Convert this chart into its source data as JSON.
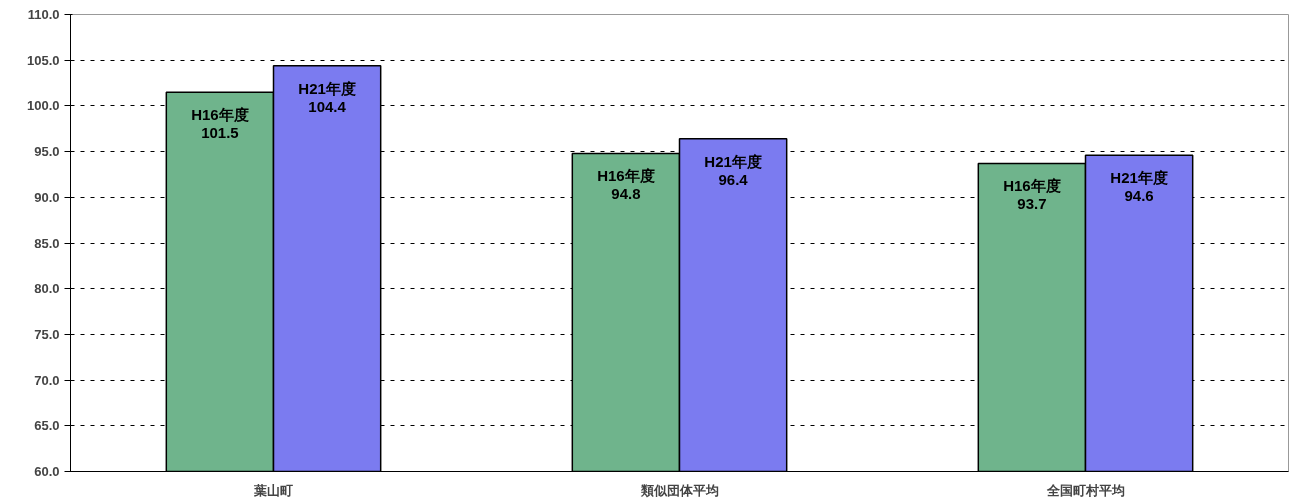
{
  "chart_data": {
    "type": "bar",
    "categories": [
      "葉山町",
      "類似団体平均",
      "全国町村平均"
    ],
    "series": [
      {
        "name": "H16年度",
        "color": "#6fb48c",
        "values": [
          101.5,
          94.8,
          93.7
        ]
      },
      {
        "name": "H21年度",
        "color": "#7b7bf0",
        "values": [
          104.4,
          96.4,
          94.6
        ]
      }
    ],
    "ylim": [
      60,
      110
    ],
    "yticks": [
      {
        "value": 60,
        "label": "60.0"
      },
      {
        "value": 65,
        "label": "65.0"
      },
      {
        "value": 70,
        "label": "70.0"
      },
      {
        "value": 75,
        "label": "75.0"
      },
      {
        "value": 80,
        "label": "80.0"
      },
      {
        "value": 85,
        "label": "85.0"
      },
      {
        "value": 90,
        "label": "90.0"
      },
      {
        "value": 95,
        "label": "95.0"
      },
      {
        "value": 100,
        "label": "100.0"
      },
      {
        "value": 105,
        "label": "105.0"
      },
      {
        "value": 110,
        "label": "110.0"
      }
    ],
    "grid": "y",
    "data_labels": true
  }
}
